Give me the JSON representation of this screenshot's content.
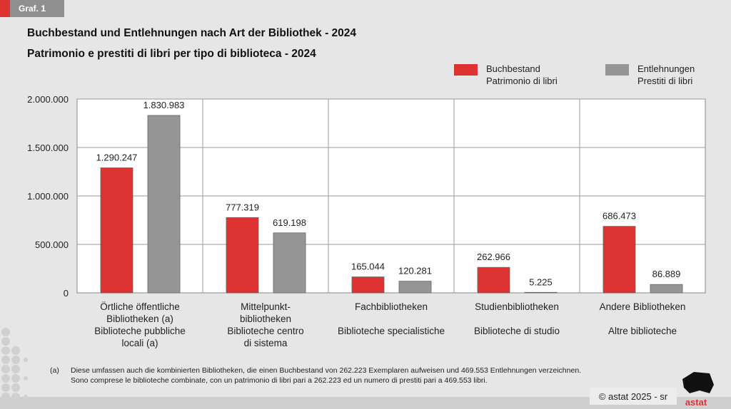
{
  "tag_label": "Graf. 1",
  "titles": {
    "de": "Buchbestand und Entlehnungen nach Art der Bibliothek - 2024",
    "it": "Patrimonio e prestiti di libri per tipo di biblioteca - 2024"
  },
  "footnote": {
    "marker": "(a)",
    "de": "Diese umfassen auch die kombinierten Bibliotheken, die einen Buchbestand von 262.223 Exemplaren aufweisen und 469.553 Entlehnungen verzeichnen.",
    "it": "Sono comprese le biblioteche combinate, con un patrimonio di libri pari a 262.223 ed un numero di prestiti pari a 469.553 libri."
  },
  "copyright": "© astat 2025 - sr",
  "logo_text": "astat",
  "chart_data": {
    "type": "bar",
    "categories": [
      {
        "de": [
          "Örtliche öffentliche",
          "Bibliotheken (a)"
        ],
        "it": [
          "Biblioteche pubbliche",
          "locali (a)"
        ]
      },
      {
        "de": [
          "Mittelpunkt-",
          "bibliotheken"
        ],
        "it": [
          "Biblioteche centro",
          "di sistema"
        ]
      },
      {
        "de": [
          "Fachbibliotheken"
        ],
        "it": [
          "Biblioteche specialistiche"
        ]
      },
      {
        "de": [
          "Studienbibliotheken"
        ],
        "it": [
          "Biblioteche di studio"
        ]
      },
      {
        "de": [
          "Andere Bibliotheken"
        ],
        "it": [
          "Altre biblioteche"
        ]
      }
    ],
    "series": [
      {
        "name": [
          "Buchbestand",
          "Patrimonio di libri"
        ],
        "color": "#dd3333",
        "values": [
          1290247,
          777319,
          165044,
          262966,
          686473
        ],
        "labels": [
          "1.290.247",
          "777.319",
          "165.044",
          "262.966",
          "686.473"
        ]
      },
      {
        "name": [
          "Entlehnungen",
          "Prestiti di libri"
        ],
        "color": "#959595",
        "values": [
          1830983,
          619198,
          120281,
          5225,
          86889
        ],
        "labels": [
          "1.830.983",
          "619.198",
          "120.281",
          "5.225",
          "86.889"
        ]
      }
    ],
    "yticks": [
      0,
      500000,
      1000000,
      1500000,
      2000000
    ],
    "ytick_labels": [
      "0",
      "500.000",
      "1.000.000",
      "1.500.000",
      "2.000.000"
    ],
    "ylim": [
      0,
      2000000
    ],
    "grid": true,
    "legend": "top-right"
  }
}
